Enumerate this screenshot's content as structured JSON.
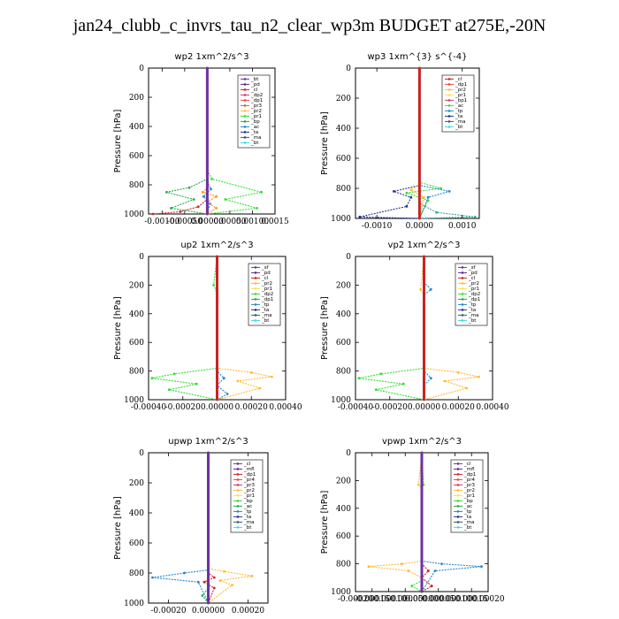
{
  "title": "jan24_clubb_c_invrs_tau_n2_clear_wp3m  BUDGET at275E,-20N",
  "chart_data": [
    {
      "type": "line",
      "title": "wp2   1xm^2/s^3",
      "ylabel": "Pressure [hPa]",
      "xlim": [
        -0.0013,
        0.0015
      ],
      "ylim": [
        1000,
        0
      ],
      "xticks": [
        -0.001,
        -0.0005,
        0.0,
        0.0005,
        0.001,
        0.0015
      ],
      "xtick_labels": [
        "-0.00100",
        "-0.00050",
        "0.00000",
        "0.00050",
        "0.00100",
        "0.0015"
      ],
      "yticks": [
        0,
        200,
        400,
        600,
        800,
        1000
      ],
      "legend": [
        "_bt",
        "_pd",
        "_cl",
        "_dp2",
        "_dp1",
        "_pr3",
        "_pr2",
        "_pr1",
        "_bp",
        "_ac",
        "_ta",
        "_ma",
        "_bt"
      ],
      "legend_colors": [
        "#7030a0",
        "#5a2a8a",
        "#cc2222",
        "#d6336a",
        "#ee4444",
        "#dd5555",
        "#ffbb33",
        "#33dd33",
        "#22aa44",
        "#2288cc",
        "#223399",
        "#445566",
        "#33dddd"
      ],
      "series": [
        {
          "color": "#33dd33",
          "points": [
            [
              0,
              0
            ],
            [
              0,
              700
            ],
            [
              0.0001,
              760
            ],
            [
              0.0012,
              850
            ],
            [
              0.0004,
              900
            ],
            [
              0.0011,
              960
            ],
            [
              0,
              1000
            ]
          ]
        },
        {
          "color": "#22aa44",
          "points": [
            [
              0,
              0
            ],
            [
              0,
              760
            ],
            [
              -0.0004,
              820
            ],
            [
              -0.0009,
              850
            ],
            [
              -0.0003,
              900
            ],
            [
              -0.0008,
              960
            ],
            [
              0,
              1000
            ]
          ]
        },
        {
          "color": "#2288cc",
          "points": [
            [
              0,
              0
            ],
            [
              0,
              780
            ],
            [
              8e-05,
              830
            ],
            [
              -8e-05,
              880
            ],
            [
              6e-05,
              930
            ],
            [
              0,
              1000
            ]
          ]
        },
        {
          "color": "#cc2222",
          "points": [
            [
              0,
              0
            ],
            [
              0,
              900
            ],
            [
              -0.0002,
              950
            ],
            [
              -0.0006,
              985
            ],
            [
              -0.0012,
              1000
            ]
          ]
        },
        {
          "color": "#ff9900",
          "points": [
            [
              0,
              0
            ],
            [
              0,
              820
            ],
            [
              -0.0001,
              850
            ],
            [
              0.0002,
              880
            ],
            [
              0,
              920
            ],
            [
              0.0002,
              960
            ],
            [
              0,
              1000
            ]
          ]
        },
        {
          "color": "#7030a0",
          "points": [
            [
              0,
              0
            ],
            [
              0,
              1000
            ]
          ]
        }
      ]
    },
    {
      "type": "line",
      "title": "wp3   1xm^{3} s^{-4}",
      "ylabel": "Pressure [hPa]",
      "xlim": [
        -0.0015,
        0.0014
      ],
      "ylim": [
        1000,
        0
      ],
      "xticks": [
        -0.001,
        0.0,
        0.001
      ],
      "xtick_labels": [
        "-0.0010",
        "0.0000",
        "0.0010"
      ],
      "yticks": [
        0,
        200,
        400,
        600,
        800,
        1000
      ],
      "legend": [
        "_cl",
        "_dp1",
        "_pr2",
        "_pr1",
        "_bp1",
        "_ac",
        "_tp",
        "_ta",
        "_ma",
        "_bt"
      ],
      "legend_colors": [
        "#cc2222",
        "#ee4444",
        "#ffbb33",
        "#ffdd55",
        "#dd3366",
        "#33dd33",
        "#2288cc",
        "#223399",
        "#445566",
        "#33dddd"
      ],
      "series": [
        {
          "color": "#33dd33",
          "points": [
            [
              0,
              0
            ],
            [
              0,
              760
            ],
            [
              0.0005,
              800
            ],
            [
              -0.0003,
              830
            ],
            [
              0.0002,
              880
            ],
            [
              0,
              1000
            ]
          ]
        },
        {
          "color": "#2288cc",
          "points": [
            [
              0,
              0
            ],
            [
              0,
              780
            ],
            [
              0.0007,
              820
            ],
            [
              0.0002,
              860
            ],
            [
              0,
              1000
            ]
          ]
        },
        {
          "color": "#223399",
          "points": [
            [
              0,
              0
            ],
            [
              0,
              780
            ],
            [
              -0.0006,
              820
            ],
            [
              -0.0002,
              860
            ],
            [
              -0.0003,
              920
            ],
            [
              -0.0014,
              990
            ],
            [
              0,
              1000
            ]
          ]
        },
        {
          "color": "#33aaaa",
          "points": [
            [
              0,
              0
            ],
            [
              0,
              900
            ],
            [
              0.0004,
              960
            ],
            [
              0.0013,
              990
            ],
            [
              0,
              1000
            ]
          ]
        },
        {
          "color": "#ffbb33",
          "points": [
            [
              0,
              0
            ],
            [
              0,
              780
            ],
            [
              -0.0002,
              810
            ],
            [
              0.0001,
              860
            ],
            [
              0,
              1000
            ]
          ]
        },
        {
          "color": "#cc2222",
          "points": [
            [
              0,
              0
            ],
            [
              0,
              1000
            ]
          ]
        }
      ]
    },
    {
      "type": "line",
      "title": "up2   1xm^2/s^3",
      "ylabel": "Pressure [hPa]",
      "xlim": [
        -0.0004,
        0.0004
      ],
      "ylim": [
        1000,
        0
      ],
      "xticks": [
        -0.0004,
        -0.0002,
        0.0,
        0.0002,
        0.0004
      ],
      "xtick_labels": [
        "-0.00040",
        "-0.00020",
        "0.00000",
        "0.00020",
        "0.00040"
      ],
      "yticks": [
        0,
        200,
        400,
        600,
        800,
        1000
      ],
      "legend": [
        "_sf",
        "_pd",
        "_cl",
        "_pr2",
        "_pr1",
        "_dp2",
        "_dp1",
        "_tp",
        "_ta",
        "_ma",
        "_bt"
      ],
      "legend_colors": [
        "#7030a0",
        "#5a2a8a",
        "#cc2222",
        "#ffbb33",
        "#ffdd55",
        "#33dd33",
        "#22aa44",
        "#2288cc",
        "#223399",
        "#445566",
        "#33dddd"
      ],
      "series": [
        {
          "color": "#33dd33",
          "points": [
            [
              0,
              0
            ],
            [
              -2e-05,
              200
            ],
            [
              0,
              260
            ],
            [
              0,
              780
            ],
            [
              -0.00025,
              820
            ],
            [
              -0.00038,
              850
            ],
            [
              -0.00012,
              890
            ],
            [
              -0.00028,
              930
            ],
            [
              0,
              1000
            ]
          ]
        },
        {
          "color": "#ffbb33",
          "points": [
            [
              0,
              0
            ],
            [
              0,
              780
            ],
            [
              0.0002,
              810
            ],
            [
              0.00032,
              840
            ],
            [
              0.00012,
              870
            ],
            [
              0.00025,
              920
            ],
            [
              0,
              1000
            ]
          ]
        },
        {
          "color": "#2288cc",
          "points": [
            [
              0,
              0
            ],
            [
              0,
              800
            ],
            [
              4e-05,
              850
            ],
            [
              0,
              900
            ],
            [
              6e-05,
              960
            ],
            [
              0,
              1000
            ]
          ]
        },
        {
          "color": "#cc2222",
          "points": [
            [
              0,
              0
            ],
            [
              0,
              1000
            ]
          ]
        }
      ]
    },
    {
      "type": "line",
      "title": "vp2   1xm^2/s^3",
      "ylabel": "Pressure [hPa]",
      "xlim": [
        -0.0004,
        0.0004
      ],
      "ylim": [
        1000,
        0
      ],
      "xticks": [
        -0.0004,
        -0.0002,
        0.0,
        0.0002,
        0.0004
      ],
      "xtick_labels": [
        "-0.00040",
        "-0.00020",
        "0.00000",
        "0.00020",
        "0.00040"
      ],
      "yticks": [
        0,
        200,
        400,
        600,
        800,
        1000
      ],
      "legend": [
        "_sf",
        "_pd",
        "_cl",
        "_pr2",
        "_pr1",
        "_dp2",
        "_dp1",
        "_tp",
        "_ta",
        "_ma",
        "_bt"
      ],
      "legend_colors": [
        "#7030a0",
        "#5a2a8a",
        "#cc2222",
        "#ffbb33",
        "#ffdd55",
        "#33dd33",
        "#22aa44",
        "#2288cc",
        "#223399",
        "#445566",
        "#33dddd"
      ],
      "series": [
        {
          "color": "#2288cc",
          "points": [
            [
              0,
              0
            ],
            [
              0,
              180
            ],
            [
              4e-05,
              230
            ],
            [
              0,
              270
            ],
            [
              0,
              800
            ],
            [
              4e-05,
              850
            ],
            [
              0,
              900
            ],
            [
              0,
              1000
            ]
          ]
        },
        {
          "color": "#ffbb33",
          "points": [
            [
              0,
              0
            ],
            [
              -2e-05,
              230
            ],
            [
              0,
              270
            ],
            [
              0,
              780
            ],
            [
              0.0002,
              810
            ],
            [
              0.00032,
              840
            ],
            [
              0.00012,
              870
            ],
            [
              0.00025,
              920
            ],
            [
              0,
              1000
            ]
          ]
        },
        {
          "color": "#33dd33",
          "points": [
            [
              0,
              0
            ],
            [
              0,
              780
            ],
            [
              -0.00025,
              820
            ],
            [
              -0.00038,
              850
            ],
            [
              -0.00012,
              890
            ],
            [
              -0.00028,
              930
            ],
            [
              0,
              1000
            ]
          ]
        },
        {
          "color": "#cc2222",
          "points": [
            [
              0,
              0
            ],
            [
              0,
              1000
            ]
          ]
        }
      ]
    },
    {
      "type": "line",
      "title": "upwp   1xm^2/s^3",
      "ylabel": "Pressure [hPa]",
      "xlim": [
        -0.0003,
        0.0003
      ],
      "ylim": [
        1000,
        0
      ],
      "xticks": [
        -0.0002,
        0.0,
        0.0002
      ],
      "xtick_labels": [
        "-0.00020",
        "0.00000",
        "0.00020"
      ],
      "yticks": [
        0,
        200,
        400,
        600,
        800,
        1000
      ],
      "legend": [
        "_cl",
        "_mfl",
        "_dp1",
        "_pr4",
        "_pr3",
        "_pr2",
        "_pr1",
        "_bp",
        "_ac",
        "_tp",
        "_ta",
        "_ma",
        "_bt"
      ],
      "legend_colors": [
        "#7030a0",
        "#5a2a8a",
        "#cc2222",
        "#ee4444",
        "#dd3366",
        "#ffbb33",
        "#ffdd55",
        "#33dd33",
        "#22aa44",
        "#2288cc",
        "#223399",
        "#445566",
        "#33dddd"
      ],
      "series": [
        {
          "color": "#2288cc",
          "points": [
            [
              0,
              0
            ],
            [
              0,
              780
            ],
            [
              -0.00012,
              800
            ],
            [
              -0.00028,
              830
            ],
            [
              -5e-05,
              860
            ],
            [
              0,
              1000
            ]
          ]
        },
        {
          "color": "#ffbb33",
          "points": [
            [
              0,
              0
            ],
            [
              0,
              770
            ],
            [
              8e-05,
              790
            ],
            [
              0.00022,
              820
            ],
            [
              6e-05,
              850
            ],
            [
              0.00012,
              880
            ],
            [
              0,
              1000
            ]
          ]
        },
        {
          "color": "#cc2222",
          "points": [
            [
              0,
              0
            ],
            [
              0,
              800
            ],
            [
              3e-05,
              830
            ],
            [
              -2e-05,
              860
            ],
            [
              3e-05,
              900
            ],
            [
              0,
              1000
            ]
          ]
        },
        {
          "color": "#22aa44",
          "points": [
            [
              0,
              0
            ],
            [
              0,
              900
            ],
            [
              -3e-05,
              950
            ],
            [
              0,
              1000
            ]
          ]
        },
        {
          "color": "#7030a0",
          "points": [
            [
              0,
              0
            ],
            [
              0,
              1000
            ]
          ]
        }
      ]
    },
    {
      "type": "line",
      "title": "vpwp   1xm^2/s^3",
      "ylabel": "Pressure [hPa]",
      "xlim": [
        -0.0002,
        0.0002
      ],
      "ylim": [
        1000,
        0
      ],
      "xticks": [
        -0.0002,
        -0.00015,
        -0.0001,
        -5e-05,
        0.0,
        5e-05,
        0.0001,
        0.00015,
        0.0002
      ],
      "xtick_labels": [
        "-0.00020",
        "-0.00015",
        "-0.00010",
        "-0.00005",
        "0.00000",
        "0.00005",
        "0.00010",
        "0.00015",
        "0.00020"
      ],
      "yticks": [
        0,
        200,
        400,
        600,
        800,
        1000
      ],
      "legend": [
        "_cl",
        "_mfl",
        "_dp1",
        "_pr4",
        "_pr3",
        "_pr2",
        "_pr1",
        "_bp",
        "_ac",
        "_tp",
        "_ta",
        "_ma",
        "_bt"
      ],
      "legend_colors": [
        "#7030a0",
        "#5a2a8a",
        "#cc2222",
        "#ee4444",
        "#dd3366",
        "#ffbb33",
        "#ffdd55",
        "#33dd33",
        "#22aa44",
        "#2288cc",
        "#223399",
        "#445566",
        "#33dddd"
      ],
      "series": [
        {
          "color": "#ffbb33",
          "points": [
            [
              0,
              0
            ],
            [
              -1e-05,
              230
            ],
            [
              0,
              260
            ],
            [
              0,
              780
            ],
            [
              -6e-05,
              800
            ],
            [
              -0.00016,
              820
            ],
            [
              -4e-05,
              850
            ],
            [
              0,
              900
            ],
            [
              0,
              1000
            ]
          ]
        },
        {
          "color": "#2288cc",
          "points": [
            [
              0,
              0
            ],
            [
              0,
              780
            ],
            [
              6e-05,
              800
            ],
            [
              0.00018,
              820
            ],
            [
              4e-05,
              850
            ],
            [
              0,
              1000
            ]
          ]
        },
        {
          "color": "#33dd33",
          "points": [
            [
              0,
              0
            ],
            [
              5e-06,
              230
            ],
            [
              0,
              260
            ],
            [
              0,
              920
            ],
            [
              -3e-05,
              960
            ],
            [
              0,
              1000
            ]
          ]
        },
        {
          "color": "#cc2222",
          "points": [
            [
              0,
              0
            ],
            [
              0,
              800
            ],
            [
              2e-05,
              850
            ],
            [
              0,
              900
            ],
            [
              3e-05,
              960
            ],
            [
              0,
              1000
            ]
          ]
        },
        {
          "color": "#7030a0",
          "points": [
            [
              0,
              0
            ],
            [
              0,
              1000
            ]
          ]
        }
      ]
    }
  ]
}
